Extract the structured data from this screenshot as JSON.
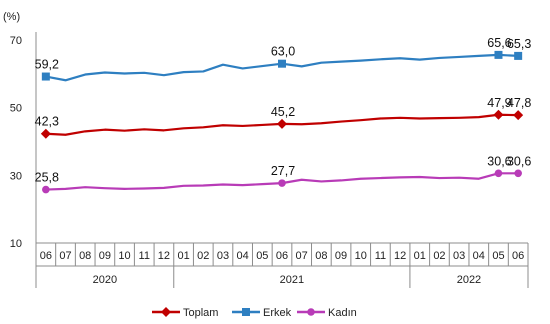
{
  "chart_data": {
    "type": "line",
    "unit_label": "(%)",
    "ylim": [
      10,
      70
    ],
    "yticks": [
      "10",
      "30",
      "50",
      "70"
    ],
    "month_labels": [
      "06",
      "07",
      "08",
      "09",
      "10",
      "11",
      "12",
      "01",
      "02",
      "03",
      "04",
      "05",
      "06",
      "07",
      "08",
      "09",
      "10",
      "11",
      "12",
      "01",
      "02",
      "03",
      "04",
      "05",
      "06"
    ],
    "years": [
      {
        "label": "2020",
        "start": 0,
        "end": 6
      },
      {
        "label": "2021",
        "start": 7,
        "end": 18
      },
      {
        "label": "2022",
        "start": 19,
        "end": 24
      }
    ],
    "grid": false,
    "legend_position": "bottom",
    "series": [
      {
        "name": "Toplam",
        "color": "#c00000",
        "marker": "diamond",
        "values": [
          42.3,
          42.0,
          43.0,
          43.5,
          43.2,
          43.6,
          43.3,
          43.9,
          44.2,
          44.8,
          44.6,
          44.9,
          45.2,
          45.1,
          45.4,
          45.9,
          46.3,
          46.8,
          47.0,
          46.8,
          46.9,
          47.0,
          47.2,
          47.9,
          47.8
        ]
      },
      {
        "name": "Erkek",
        "color": "#2e7fc1",
        "marker": "square",
        "values": [
          59.2,
          58.1,
          59.8,
          60.4,
          60.1,
          60.3,
          59.6,
          60.5,
          60.7,
          62.7,
          61.6,
          62.3,
          63.0,
          62.2,
          63.3,
          63.6,
          63.9,
          64.3,
          64.6,
          64.2,
          64.7,
          65.0,
          65.3,
          65.6,
          65.3
        ]
      },
      {
        "name": "Kadın",
        "color": "#b83bb7",
        "marker": "circle",
        "values": [
          25.8,
          26.0,
          26.5,
          26.2,
          26.0,
          26.1,
          26.3,
          26.9,
          27.0,
          27.3,
          27.1,
          27.4,
          27.7,
          28.7,
          28.2,
          28.5,
          29.0,
          29.2,
          29.4,
          29.5,
          29.2,
          29.3,
          29.0,
          30.6,
          30.6
        ]
      }
    ],
    "annotations": [
      {
        "series": 0,
        "index": 0,
        "text": "42,3"
      },
      {
        "series": 0,
        "index": 12,
        "text": "45,2"
      },
      {
        "series": 0,
        "index": 23,
        "text": "47,9"
      },
      {
        "series": 0,
        "index": 24,
        "text": "47,8"
      },
      {
        "series": 1,
        "index": 0,
        "text": "59,2"
      },
      {
        "series": 1,
        "index": 12,
        "text": "63,0"
      },
      {
        "series": 1,
        "index": 23,
        "text": "65,6"
      },
      {
        "series": 1,
        "index": 24,
        "text": "65,3"
      },
      {
        "series": 2,
        "index": 0,
        "text": "25,8"
      },
      {
        "series": 2,
        "index": 12,
        "text": "27,7"
      },
      {
        "series": 2,
        "index": 23,
        "text": "30,6"
      },
      {
        "series": 2,
        "index": 24,
        "text": "30,6"
      }
    ]
  }
}
